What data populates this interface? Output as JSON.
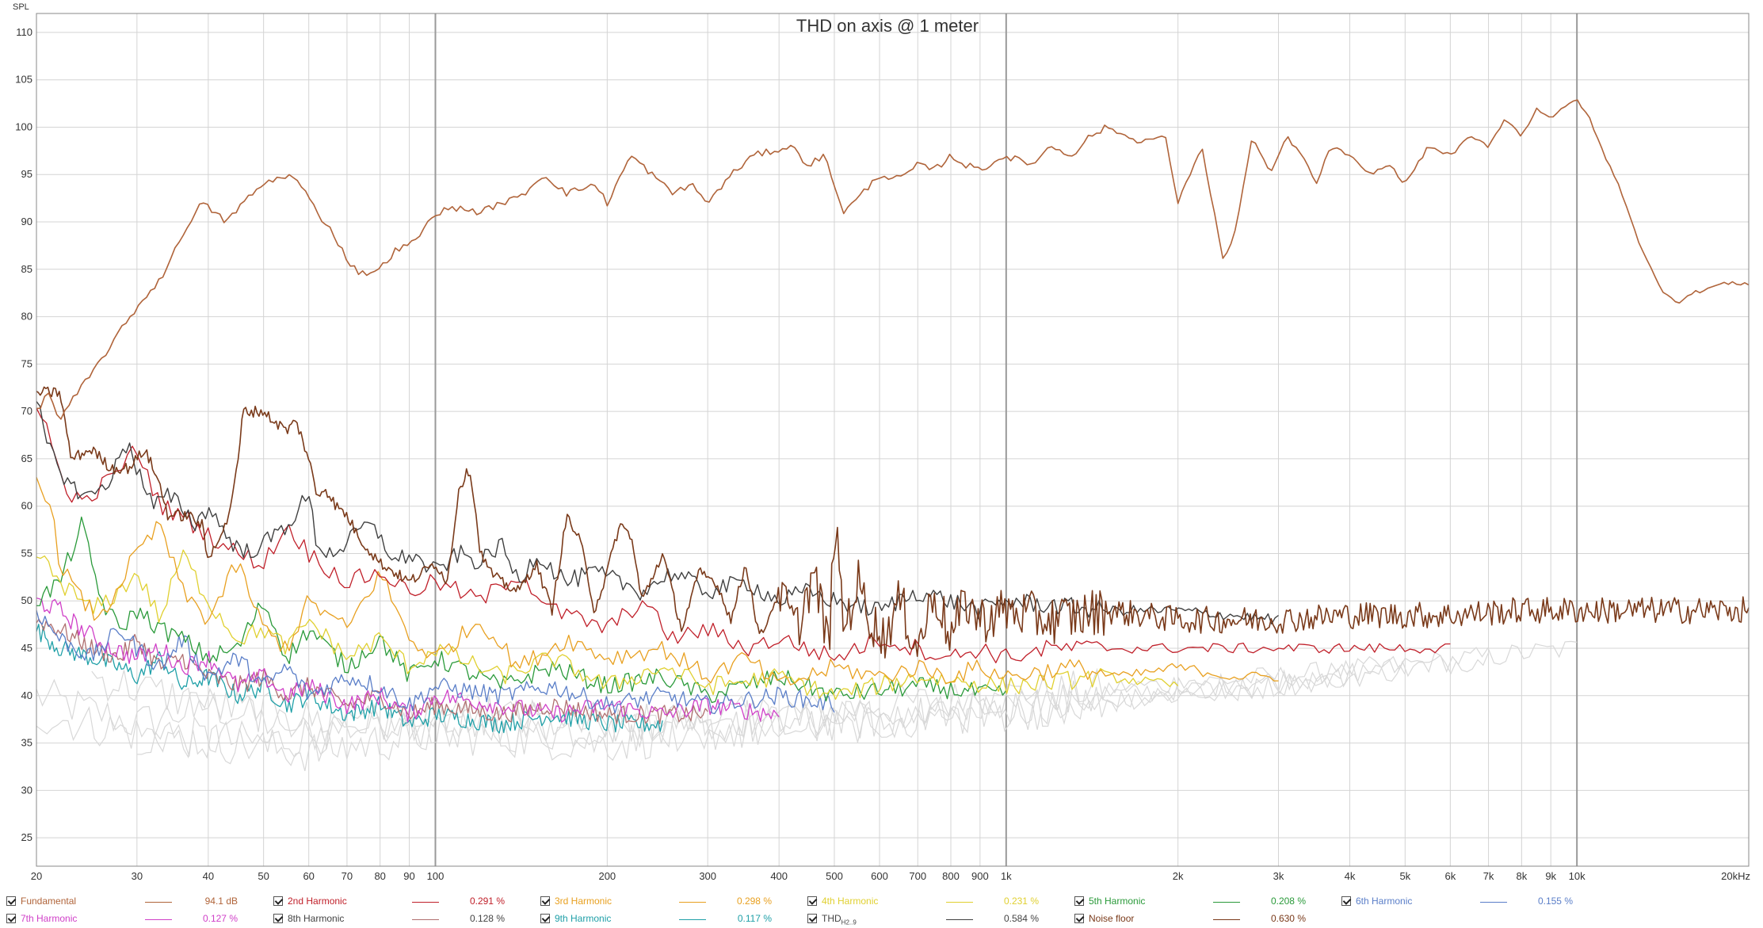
{
  "chart_data": {
    "type": "line",
    "title": "THD on axis @ 1 meter",
    "ylabel": "SPL",
    "xscale": "log",
    "xlim": [
      20,
      20000
    ],
    "ylim": [
      22,
      112
    ],
    "grid": true,
    "y_ticks": [
      25,
      30,
      35,
      40,
      45,
      50,
      55,
      60,
      65,
      70,
      75,
      80,
      85,
      90,
      95,
      100,
      105,
      110
    ],
    "x_ticks": [
      {
        "v": 20,
        "label": "20"
      },
      {
        "v": 30,
        "label": "30"
      },
      {
        "v": 40,
        "label": "40"
      },
      {
        "v": 50,
        "label": "50"
      },
      {
        "v": 60,
        "label": "60"
      },
      {
        "v": 70,
        "label": "70"
      },
      {
        "v": 80,
        "label": "80"
      },
      {
        "v": 90,
        "label": "90"
      },
      {
        "v": 100,
        "label": "100"
      },
      {
        "v": 200,
        "label": "200"
      },
      {
        "v": 300,
        "label": "300"
      },
      {
        "v": 400,
        "label": "400"
      },
      {
        "v": 500,
        "label": "500"
      },
      {
        "v": 600,
        "label": "600"
      },
      {
        "v": 700,
        "label": "700"
      },
      {
        "v": 800,
        "label": "800"
      },
      {
        "v": 900,
        "label": "900"
      },
      {
        "v": 1000,
        "label": "1k"
      },
      {
        "v": 2000,
        "label": "2k"
      },
      {
        "v": 3000,
        "label": "3k"
      },
      {
        "v": 4000,
        "label": "4k"
      },
      {
        "v": 5000,
        "label": "5k"
      },
      {
        "v": 6000,
        "label": "6k"
      },
      {
        "v": 7000,
        "label": "7k"
      },
      {
        "v": 8000,
        "label": "8k"
      },
      {
        "v": 9000,
        "label": "9k"
      },
      {
        "v": 10000,
        "label": "10k"
      },
      {
        "v": 20000,
        "label": "20kHz"
      }
    ],
    "series": [
      {
        "name": "Fundamental",
        "color": "#b0643a",
        "value": "94.1 dB",
        "x": [
          20,
          21,
          22,
          23,
          25,
          27,
          30,
          33,
          35,
          37,
          39,
          41,
          43,
          46,
          50,
          55,
          58,
          62,
          66,
          70,
          74,
          80,
          85,
          90,
          95,
          100,
          110,
          120,
          130,
          140,
          155,
          170,
          190,
          200,
          220,
          240,
          260,
          280,
          300,
          330,
          360,
          390,
          420,
          450,
          480,
          520,
          560,
          600,
          650,
          700,
          750,
          800,
          850,
          900,
          1000,
          1100,
          1200,
          1300,
          1400,
          1500,
          1700,
          1900,
          2000,
          2200,
          2400,
          2500,
          2700,
          2900,
          3100,
          3300,
          3500,
          3700,
          4000,
          4300,
          4700,
          5000,
          5500,
          6000,
          6500,
          7000,
          7500,
          8000,
          8500,
          9000,
          9500,
          10000,
          10500,
          11000,
          12000,
          13000,
          14000,
          15000,
          16000,
          17000,
          18000,
          19000,
          20000
        ],
        "y": [
          70,
          72,
          69,
          71,
          74,
          77,
          81,
          84,
          87,
          90,
          92,
          91,
          90,
          92,
          94,
          95,
          94,
          91,
          89,
          86,
          84.5,
          85,
          87,
          87.5,
          89,
          91,
          91.5,
          91,
          92,
          92.5,
          95,
          93,
          94,
          92,
          97,
          95,
          93,
          94,
          92,
          95,
          97,
          97.5,
          98,
          96,
          97,
          91,
          93,
          95,
          94.5,
          96,
          95.5,
          97,
          96,
          95.5,
          97,
          96,
          98,
          97,
          99,
          100,
          98.5,
          99,
          92,
          98,
          86,
          88,
          99,
          95,
          99,
          97,
          94,
          98,
          97,
          95,
          96,
          94,
          98,
          97,
          99,
          98,
          101,
          99,
          102,
          101,
          102,
          103,
          101,
          98,
          93,
          87,
          83,
          81.5,
          82.5,
          83,
          83.5,
          83.5,
          83.5
        ]
      },
      {
        "name": "2nd Harmonic",
        "color": "#c0202a",
        "value": "0.291 %",
        "x": [
          20,
          21,
          22,
          24,
          27,
          30,
          33,
          36,
          40,
          45,
          50,
          55,
          60,
          70,
          80,
          90,
          100,
          120,
          140,
          160,
          180,
          200,
          230,
          260,
          300,
          350,
          400,
          500,
          600,
          700,
          800,
          900,
          1000,
          1200,
          1500,
          2000,
          2500,
          3000,
          4000,
          5000,
          6000
        ],
        "y": [
          70,
          68,
          63,
          60,
          63,
          66,
          60,
          59,
          57,
          55,
          54,
          58,
          55,
          52,
          53,
          51,
          52,
          50,
          53,
          49,
          48,
          47,
          50,
          46,
          47,
          45,
          46,
          44,
          46,
          45,
          44,
          45,
          44,
          45,
          45,
          45,
          45,
          45,
          45,
          45,
          45
        ]
      },
      {
        "name": "3rd Harmonic",
        "color": "#e8a020",
        "value": "0.298 %",
        "x": [
          20,
          21,
          22,
          24,
          26,
          28,
          30,
          33,
          36,
          40,
          45,
          50,
          55,
          60,
          70,
          80,
          90,
          100,
          120,
          140,
          170,
          200,
          250,
          300,
          350,
          400,
          500,
          600,
          700,
          800,
          900,
          1000,
          1300,
          1600,
          2000,
          2500,
          3000
        ],
        "y": [
          63,
          61,
          54,
          50,
          48,
          52,
          55,
          58,
          51,
          48,
          54,
          47,
          45,
          50,
          47,
          53,
          46,
          44,
          48,
          43,
          46,
          44,
          45,
          42,
          44,
          41,
          43,
          42,
          43,
          42,
          43,
          42,
          43,
          42,
          43,
          42,
          42
        ]
      },
      {
        "name": "4th Harmonic",
        "color": "#e0d030",
        "value": "0.231 %",
        "x": [
          20,
          22,
          25,
          28,
          30,
          33,
          36,
          40,
          45,
          50,
          55,
          60,
          70,
          80,
          90,
          100,
          130,
          160,
          200,
          250,
          300,
          400,
          500,
          700,
          1000,
          1500,
          2000
        ],
        "y": [
          55,
          52,
          49,
          51,
          53,
          48,
          55,
          50,
          46,
          47,
          45,
          48,
          44,
          46,
          43,
          45,
          42,
          44,
          41,
          43,
          41,
          42,
          40,
          42,
          41,
          42,
          41
        ]
      },
      {
        "name": "5th Harmonic",
        "color": "#2a9a3a",
        "value": "0.208 %",
        "x": [
          20,
          22,
          24,
          26,
          28,
          30,
          33,
          36,
          40,
          45,
          50,
          55,
          60,
          70,
          80,
          90,
          100,
          130,
          160,
          200,
          250,
          300,
          400,
          500,
          700,
          1000
        ],
        "y": [
          50,
          52,
          58,
          50,
          47,
          49,
          47,
          46,
          44,
          45,
          50,
          44,
          47,
          43,
          46,
          42,
          44,
          41,
          43,
          41,
          42,
          40,
          42,
          40,
          41,
          40
        ]
      },
      {
        "name": "6th Harmonic",
        "color": "#5a7ec8",
        "value": "0.155 %",
        "x": [
          20,
          22,
          25,
          28,
          30,
          33,
          36,
          40,
          45,
          50,
          55,
          60,
          70,
          80,
          90,
          100,
          130,
          160,
          200,
          250,
          300,
          400,
          500
        ],
        "y": [
          49,
          46,
          44,
          47,
          45,
          43,
          46,
          42,
          44,
          41,
          43,
          40,
          42,
          41,
          39,
          41,
          40,
          41,
          39,
          40,
          39,
          40,
          39
        ]
      },
      {
        "name": "7th Harmonic",
        "color": "#d040c8",
        "value": "0.127 %",
        "x": [
          20,
          22,
          24,
          27,
          30,
          33,
          36,
          40,
          45,
          50,
          55,
          60,
          70,
          80,
          90,
          100,
          130,
          160,
          200,
          250,
          300,
          400
        ],
        "y": [
          50,
          49,
          47,
          45,
          44,
          45,
          43,
          44,
          41,
          42,
          40,
          41,
          39,
          40,
          38,
          40,
          39,
          38,
          39,
          38,
          39,
          38
        ]
      },
      {
        "name": "8th Harmonic",
        "color": "#b07070",
        "value": "0.128 %",
        "x": [
          20,
          22,
          25,
          28,
          30,
          33,
          36,
          40,
          45,
          50,
          55,
          60,
          70,
          80,
          90,
          100,
          130,
          160,
          200,
          250,
          300
        ],
        "y": [
          48,
          47,
          45,
          44,
          46,
          43,
          44,
          42,
          41,
          42,
          40,
          41,
          39,
          40,
          38,
          39,
          38,
          39,
          38,
          38,
          38
        ]
      },
      {
        "name": "9th Harmonic",
        "color": "#20a0a8",
        "value": "0.117 %",
        "x": [
          20,
          22,
          25,
          28,
          30,
          33,
          36,
          40,
          45,
          50,
          55,
          60,
          70,
          80,
          90,
          100,
          130,
          160,
          200,
          250
        ],
        "y": [
          47,
          45,
          44,
          43,
          42,
          44,
          41,
          42,
          40,
          41,
          39,
          40,
          38,
          39,
          37,
          38,
          37,
          38,
          37,
          37
        ]
      },
      {
        "name": "THD",
        "sub": "H2..9",
        "color": "#404040",
        "value": "0.584 %",
        "x": [
          20,
          21,
          22,
          23,
          25,
          27,
          29,
          30,
          32,
          34,
          36,
          38,
          40,
          43,
          46,
          50,
          55,
          58,
          60,
          62,
          65,
          70,
          75,
          80,
          85,
          90,
          100,
          110,
          120,
          130,
          140,
          150,
          170,
          190,
          210,
          230,
          260,
          300,
          350,
          400,
          450,
          500,
          600,
          700,
          800,
          900,
          1000,
          1500,
          2000,
          3000
        ],
        "y": [
          71,
          66,
          64,
          62,
          61,
          63,
          67,
          64,
          60,
          61,
          60,
          58,
          60,
          57,
          55,
          56,
          58,
          60,
          61,
          56,
          55,
          56,
          58,
          57,
          54,
          55,
          53,
          55,
          54,
          56,
          52,
          55,
          52,
          53,
          52,
          51,
          53,
          51,
          52,
          50,
          51,
          50,
          49,
          51,
          50,
          49,
          50,
          49,
          49,
          48
        ]
      },
      {
        "name": "Noise floor",
        "color": "#7a3a1a",
        "value": "0.630 %",
        "x": [
          20,
          22,
          23,
          25,
          27,
          29,
          31,
          33,
          34,
          37,
          39,
          40,
          41,
          43,
          45,
          46,
          50,
          52,
          55,
          57,
          60,
          62,
          64,
          67,
          70,
          73,
          75,
          80,
          85,
          90,
          95,
          100,
          105,
          110,
          115,
          120,
          125,
          130,
          140,
          150,
          160,
          170,
          180,
          190,
          200,
          210,
          220,
          230,
          250,
          270,
          290,
          310,
          330,
          350,
          370,
          400,
          430,
          460,
          490,
          500,
          520,
          550,
          580,
          610,
          650,
          700,
          750,
          800,
          850,
          900,
          1000,
          1200,
          1500,
          2000,
          3000,
          4000,
          6000,
          8000,
          10000,
          14000,
          20000
        ],
        "y": [
          72,
          72,
          65,
          66,
          64,
          64,
          66,
          62,
          59,
          59,
          58,
          54,
          56,
          58,
          64,
          70,
          70,
          69,
          68,
          69,
          65,
          61,
          62,
          60,
          59,
          57,
          56,
          54,
          53,
          52,
          53,
          54,
          52,
          62,
          64,
          55,
          53,
          52,
          51,
          54,
          49,
          59,
          56,
          49,
          53,
          58,
          57,
          50,
          55,
          47,
          53,
          52,
          48,
          54,
          46,
          51,
          47,
          53,
          45,
          59,
          47,
          52,
          48,
          46,
          50,
          45,
          51,
          46,
          50,
          48,
          49,
          48,
          49,
          48,
          48,
          48.5,
          48.5,
          49,
          49,
          49,
          49
        ]
      }
    ]
  }
}
